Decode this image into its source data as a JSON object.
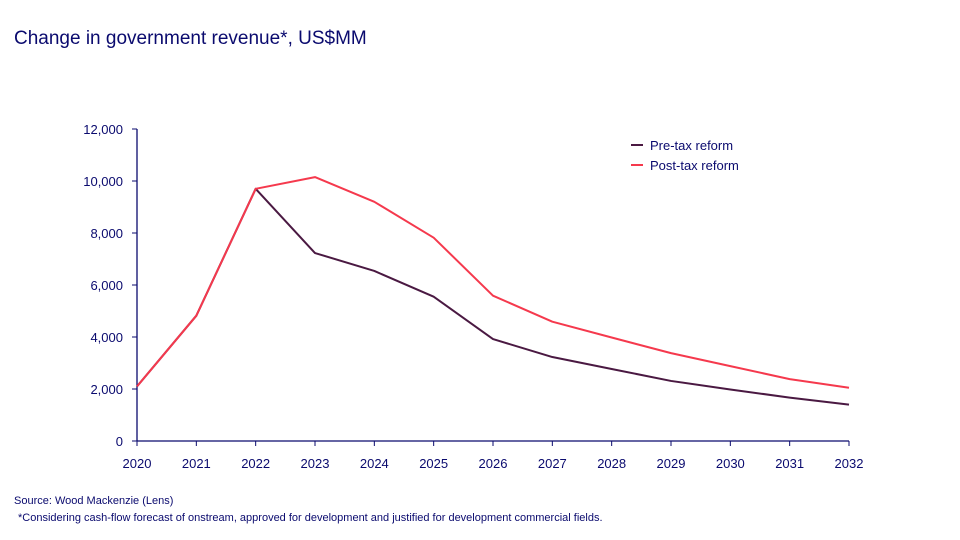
{
  "title": "Change in government  revenue*,  US$MM",
  "source": "Source: Wood Mackenzie (Lens)",
  "footnote": "*Considering cash-flow forecast of onstream, approved for development  and justified for development  commercial fields.",
  "chart_data": {
    "type": "line",
    "title": "Change in government  revenue*,  US$MM",
    "x": [
      2020,
      2021,
      2022,
      2023,
      2024,
      2025,
      2026,
      2027,
      2028,
      2029,
      2030,
      2031,
      2032
    ],
    "ylim": [
      0,
      12000
    ],
    "yticks": [
      0,
      2000,
      4000,
      6000,
      8000,
      10000,
      12000
    ],
    "ytick_labels": [
      "0",
      "2,000",
      "4,000",
      "6,000",
      "8,000",
      "10,000",
      "12,000"
    ],
    "grid": false,
    "legend": "top-right",
    "series": [
      {
        "name": "Pre-tax reform",
        "color": "#4a1942",
        "values": [
          2100,
          4820,
          9700,
          7230,
          6540,
          5550,
          3920,
          3230,
          2770,
          2310,
          1980,
          1670,
          1400
        ]
      },
      {
        "name": "Post-tax reform",
        "color": "#f5394d",
        "values": [
          2100,
          4820,
          9700,
          10150,
          9200,
          7820,
          5590,
          4590,
          3980,
          3380,
          2880,
          2380,
          2050
        ]
      }
    ]
  }
}
